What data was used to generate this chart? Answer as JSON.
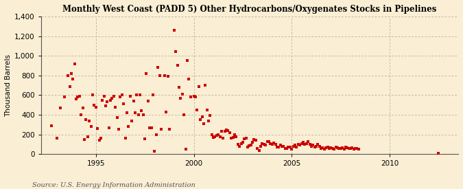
{
  "title": "Monthly West Coast (PADD 5) Other Hydrocarbons/Oxygenates Stocks in Pipelines",
  "ylabel": "Thousand Barrels",
  "source": "Source: U.S. Energy Information Administration",
  "background_color": "#faefd4",
  "plot_bg_color": "#faefd4",
  "marker_color": "#cc0000",
  "ylim": [
    0,
    1400
  ],
  "yticks": [
    0,
    200,
    400,
    600,
    800,
    1000,
    1200,
    1400
  ],
  "xlim_start": 1992.2,
  "xlim_end": 2013.5,
  "xticks": [
    1995,
    2000,
    2005,
    2010
  ],
  "data_points": [
    [
      1992.75,
      290
    ],
    [
      1993.0,
      160
    ],
    [
      1993.2,
      470
    ],
    [
      1993.4,
      580
    ],
    [
      1993.58,
      800
    ],
    [
      1993.67,
      690
    ],
    [
      1993.75,
      820
    ],
    [
      1993.83,
      760
    ],
    [
      1993.92,
      920
    ],
    [
      1994.0,
      560
    ],
    [
      1994.08,
      580
    ],
    [
      1994.17,
      590
    ],
    [
      1994.25,
      400
    ],
    [
      1994.33,
      470
    ],
    [
      1994.42,
      150
    ],
    [
      1994.5,
      350
    ],
    [
      1994.58,
      180
    ],
    [
      1994.67,
      340
    ],
    [
      1994.75,
      280
    ],
    [
      1994.83,
      600
    ],
    [
      1994.92,
      500
    ],
    [
      1995.0,
      475
    ],
    [
      1995.08,
      260
    ],
    [
      1995.17,
      140
    ],
    [
      1995.25,
      160
    ],
    [
      1995.33,
      550
    ],
    [
      1995.42,
      590
    ],
    [
      1995.5,
      490
    ],
    [
      1995.58,
      530
    ],
    [
      1995.67,
      270
    ],
    [
      1995.75,
      550
    ],
    [
      1995.83,
      570
    ],
    [
      1995.92,
      590
    ],
    [
      1996.0,
      480
    ],
    [
      1996.08,
      370
    ],
    [
      1996.17,
      250
    ],
    [
      1996.25,
      580
    ],
    [
      1996.33,
      600
    ],
    [
      1996.42,
      510
    ],
    [
      1996.5,
      160
    ],
    [
      1996.58,
      420
    ],
    [
      1996.67,
      280
    ],
    [
      1996.75,
      590
    ],
    [
      1996.83,
      340
    ],
    [
      1996.92,
      540
    ],
    [
      1997.0,
      420
    ],
    [
      1997.08,
      600
    ],
    [
      1997.17,
      400
    ],
    [
      1997.25,
      600
    ],
    [
      1997.33,
      440
    ],
    [
      1997.42,
      400
    ],
    [
      1997.5,
      155
    ],
    [
      1997.58,
      820
    ],
    [
      1997.67,
      540
    ],
    [
      1997.75,
      270
    ],
    [
      1997.83,
      270
    ],
    [
      1997.92,
      600
    ],
    [
      1998.0,
      30
    ],
    [
      1998.08,
      200
    ],
    [
      1998.17,
      880
    ],
    [
      1998.25,
      800
    ],
    [
      1998.33,
      250
    ],
    [
      1998.5,
      800
    ],
    [
      1998.58,
      430
    ],
    [
      1998.67,
      790
    ],
    [
      1998.75,
      250
    ],
    [
      1999.0,
      1260
    ],
    [
      1999.08,
      1040
    ],
    [
      1999.17,
      900
    ],
    [
      1999.25,
      680
    ],
    [
      1999.33,
      570
    ],
    [
      1999.42,
      610
    ],
    [
      1999.5,
      400
    ],
    [
      1999.58,
      50
    ],
    [
      1999.67,
      950
    ],
    [
      1999.75,
      760
    ],
    [
      1999.83,
      580
    ],
    [
      2000.0,
      590
    ],
    [
      2000.08,
      580
    ],
    [
      2000.17,
      450
    ],
    [
      2000.25,
      690
    ],
    [
      2000.33,
      350
    ],
    [
      2000.42,
      380
    ],
    [
      2000.5,
      310
    ],
    [
      2000.58,
      700
    ],
    [
      2000.67,
      450
    ],
    [
      2000.75,
      340
    ],
    [
      2000.83,
      390
    ],
    [
      2000.92,
      200
    ],
    [
      2001.0,
      170
    ],
    [
      2001.08,
      180
    ],
    [
      2001.17,
      190
    ],
    [
      2001.25,
      200
    ],
    [
      2001.33,
      175
    ],
    [
      2001.42,
      230
    ],
    [
      2001.5,
      165
    ],
    [
      2001.58,
      230
    ],
    [
      2001.67,
      245
    ],
    [
      2001.75,
      240
    ],
    [
      2001.83,
      220
    ],
    [
      2001.92,
      160
    ],
    [
      2002.0,
      170
    ],
    [
      2002.08,
      200
    ],
    [
      2002.17,
      175
    ],
    [
      2002.25,
      100
    ],
    [
      2002.33,
      80
    ],
    [
      2002.42,
      110
    ],
    [
      2002.5,
      120
    ],
    [
      2002.58,
      155
    ],
    [
      2002.67,
      160
    ],
    [
      2002.75,
      75
    ],
    [
      2002.83,
      85
    ],
    [
      2002.92,
      90
    ],
    [
      2003.0,
      120
    ],
    [
      2003.08,
      150
    ],
    [
      2003.17,
      145
    ],
    [
      2003.25,
      55
    ],
    [
      2003.33,
      40
    ],
    [
      2003.42,
      80
    ],
    [
      2003.5,
      110
    ],
    [
      2003.58,
      100
    ],
    [
      2003.67,
      90
    ],
    [
      2003.75,
      125
    ],
    [
      2003.83,
      130
    ],
    [
      2003.92,
      110
    ],
    [
      2004.0,
      100
    ],
    [
      2004.08,
      115
    ],
    [
      2004.17,
      100
    ],
    [
      2004.25,
      75
    ],
    [
      2004.33,
      70
    ],
    [
      2004.42,
      90
    ],
    [
      2004.5,
      80
    ],
    [
      2004.58,
      80
    ],
    [
      2004.67,
      60
    ],
    [
      2004.75,
      60
    ],
    [
      2004.83,
      70
    ],
    [
      2004.92,
      75
    ],
    [
      2005.0,
      50
    ],
    [
      2005.08,
      80
    ],
    [
      2005.17,
      90
    ],
    [
      2005.25,
      75
    ],
    [
      2005.33,
      100
    ],
    [
      2005.42,
      90
    ],
    [
      2005.5,
      110
    ],
    [
      2005.58,
      120
    ],
    [
      2005.67,
      100
    ],
    [
      2005.75,
      110
    ],
    [
      2005.83,
      130
    ],
    [
      2005.92,
      100
    ],
    [
      2006.0,
      80
    ],
    [
      2006.08,
      90
    ],
    [
      2006.17,
      70
    ],
    [
      2006.25,
      80
    ],
    [
      2006.33,
      100
    ],
    [
      2006.42,
      80
    ],
    [
      2006.5,
      60
    ],
    [
      2006.58,
      65
    ],
    [
      2006.67,
      50
    ],
    [
      2006.75,
      65
    ],
    [
      2006.83,
      75
    ],
    [
      2006.92,
      55
    ],
    [
      2007.0,
      65
    ],
    [
      2007.08,
      60
    ],
    [
      2007.17,
      50
    ],
    [
      2007.25,
      70
    ],
    [
      2007.33,
      65
    ],
    [
      2007.42,
      55
    ],
    [
      2007.5,
      55
    ],
    [
      2007.58,
      65
    ],
    [
      2007.67,
      50
    ],
    [
      2007.75,
      70
    ],
    [
      2007.83,
      65
    ],
    [
      2007.92,
      55
    ],
    [
      2008.0,
      55
    ],
    [
      2008.08,
      65
    ],
    [
      2008.17,
      50
    ],
    [
      2008.25,
      60
    ],
    [
      2008.33,
      55
    ],
    [
      2008.42,
      50
    ],
    [
      2012.5,
      10
    ]
  ]
}
